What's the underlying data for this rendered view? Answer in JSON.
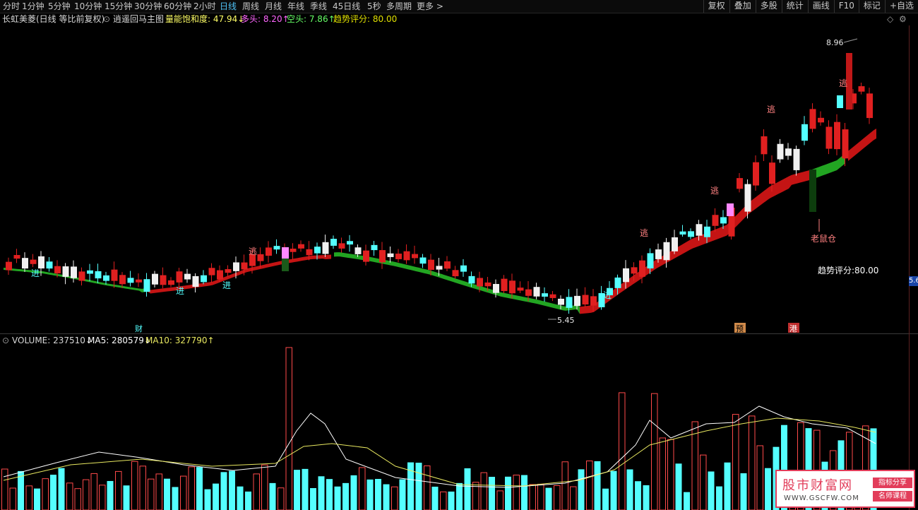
{
  "toolbar": {
    "periods": [
      "分时",
      "1分钟",
      "5分钟",
      "10分钟",
      "15分钟",
      "30分钟",
      "60分钟",
      "2小时",
      "日线",
      "周线",
      "月线",
      "年线",
      "季线",
      "45日线",
      "5秒",
      "多周期",
      "更多 >"
    ],
    "active_period": "日线",
    "right_buttons": [
      "复权",
      "叠加",
      "多股",
      "统计",
      "画线",
      "F10",
      "标记",
      "+自选"
    ]
  },
  "info": {
    "stock": "长虹美菱(日线 等比前复权)",
    "indicator": "逍遥回马主图",
    "sat_label": "量能饱和度: 47.94↓",
    "long_label": "多头: 8.20↑",
    "short_label": "空头: 7.86↑",
    "trend_label": "趋势评分: 80.00",
    "colors": {
      "sat": "#ffff66",
      "long": "#ff66ff",
      "short": "#66ff66",
      "trend": "#e0e000"
    }
  },
  "annotations": {
    "high": "8.96",
    "low": "5.45",
    "cai": "财",
    "jin": "进",
    "tao": "逃",
    "laoshucang": "老鼠仓",
    "trend_score": "趋势评分:80.00",
    "flag_a": "预",
    "flag_b": "港"
  },
  "axis_tag": "5.6",
  "volume": {
    "label": "VOLUME: 237510↓",
    "ma5": "MA5: 280579↓",
    "ma10": "MA10: 327790↑",
    "colors": {
      "up": "#ff4a4a",
      "down": "#54ffff",
      "ma5": "#ffffff",
      "ma10": "#e8e860"
    }
  },
  "watermark": {
    "title": "股市财富网",
    "url": "WWW.GSCFW.COM",
    "tag1": "指标分享",
    "tag2": "名师课程"
  },
  "chart_data": {
    "type": "candlestick",
    "high": 8.96,
    "low": 5.45,
    "latest_volume": 237510,
    "ma5": 280579,
    "ma10": 327790
  }
}
